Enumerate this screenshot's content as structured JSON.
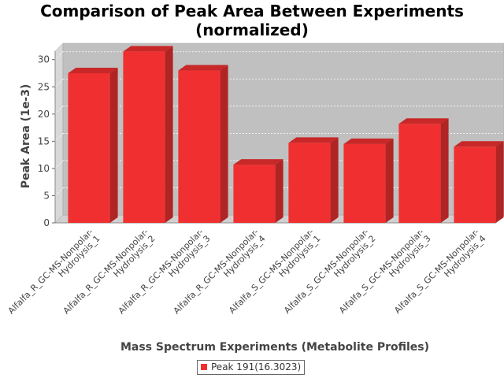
{
  "chart_data": {
    "type": "bar",
    "title_lines": [
      "Comparison of Peak Area Between Experiments",
      "(normalized)"
    ],
    "xlabel": "Mass Spectrum Experiments (Metabolite Profiles)",
    "ylabel": "Peak Area (1e-3)",
    "ylim": [
      0,
      33
    ],
    "yticks": [
      0,
      5,
      10,
      15,
      20,
      25,
      30
    ],
    "grid": true,
    "legend_placement": "bottom-center",
    "categories": [
      [
        "Alfalfa_R_GC-MS-Nonpolar-",
        "Hydrolysis_1"
      ],
      [
        "Alfalfa_R_GC-MS-Nonpolar-",
        "Hydrolysis_2"
      ],
      [
        "Alfalfa_R_GC-MS-Nonpolar-",
        "Hydrolysis_3"
      ],
      [
        "Alfalfa_R_GC-MS-Nonpolar-",
        "Hydrolysis_4"
      ],
      [
        "Alfalfa_S_GC-MS-Nonpolar-",
        "Hydrolysis_1"
      ],
      [
        "Alfalfa_S_GC-MS-Nonpolar-",
        "Hydrolysis_2"
      ],
      [
        "Alfalfa_S_GC-MS-Nonpolar-",
        "Hydrolysis_3"
      ],
      [
        "Alfalfa_S_GC-MS-Nonpolar-",
        "Hydrolysis_4"
      ]
    ],
    "series": [
      {
        "name": "Peak 191(16.3023)",
        "values": [
          27.5,
          31.5,
          28.0,
          10.7,
          14.7,
          14.5,
          18.2,
          14.0
        ]
      }
    ],
    "colors": {
      "bar": "#f03030",
      "bar_top": "#c82828",
      "bar_side": "#b02424",
      "plot_bg": "#c0c0c0",
      "wall": "#d8d8d8",
      "floor": "#d0d0d0",
      "grid": "#ffffff",
      "axis_text": "#444444"
    }
  }
}
